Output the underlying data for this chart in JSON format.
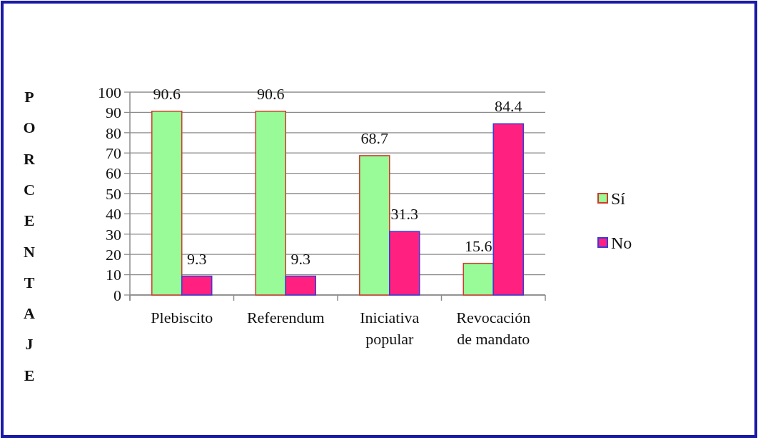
{
  "chart_data": {
    "type": "bar",
    "ylabel": "PORCENTAJE",
    "categories": [
      "Plebiscito",
      "Referendum",
      "Iniciativa popular",
      "Revocación de mandato"
    ],
    "series": [
      {
        "name": "Sí",
        "color": "#98fb98",
        "values": [
          90.6,
          90.6,
          68.7,
          15.6
        ]
      },
      {
        "name": "No",
        "color": "#ff2080",
        "values": [
          9.3,
          9.3,
          31.3,
          84.4
        ]
      }
    ],
    "ylim": [
      0,
      100
    ],
    "yticks": [
      0,
      10,
      20,
      30,
      40,
      50,
      60,
      70,
      80,
      90,
      100
    ],
    "grid": "y",
    "legend": "right",
    "data_labels": true
  }
}
